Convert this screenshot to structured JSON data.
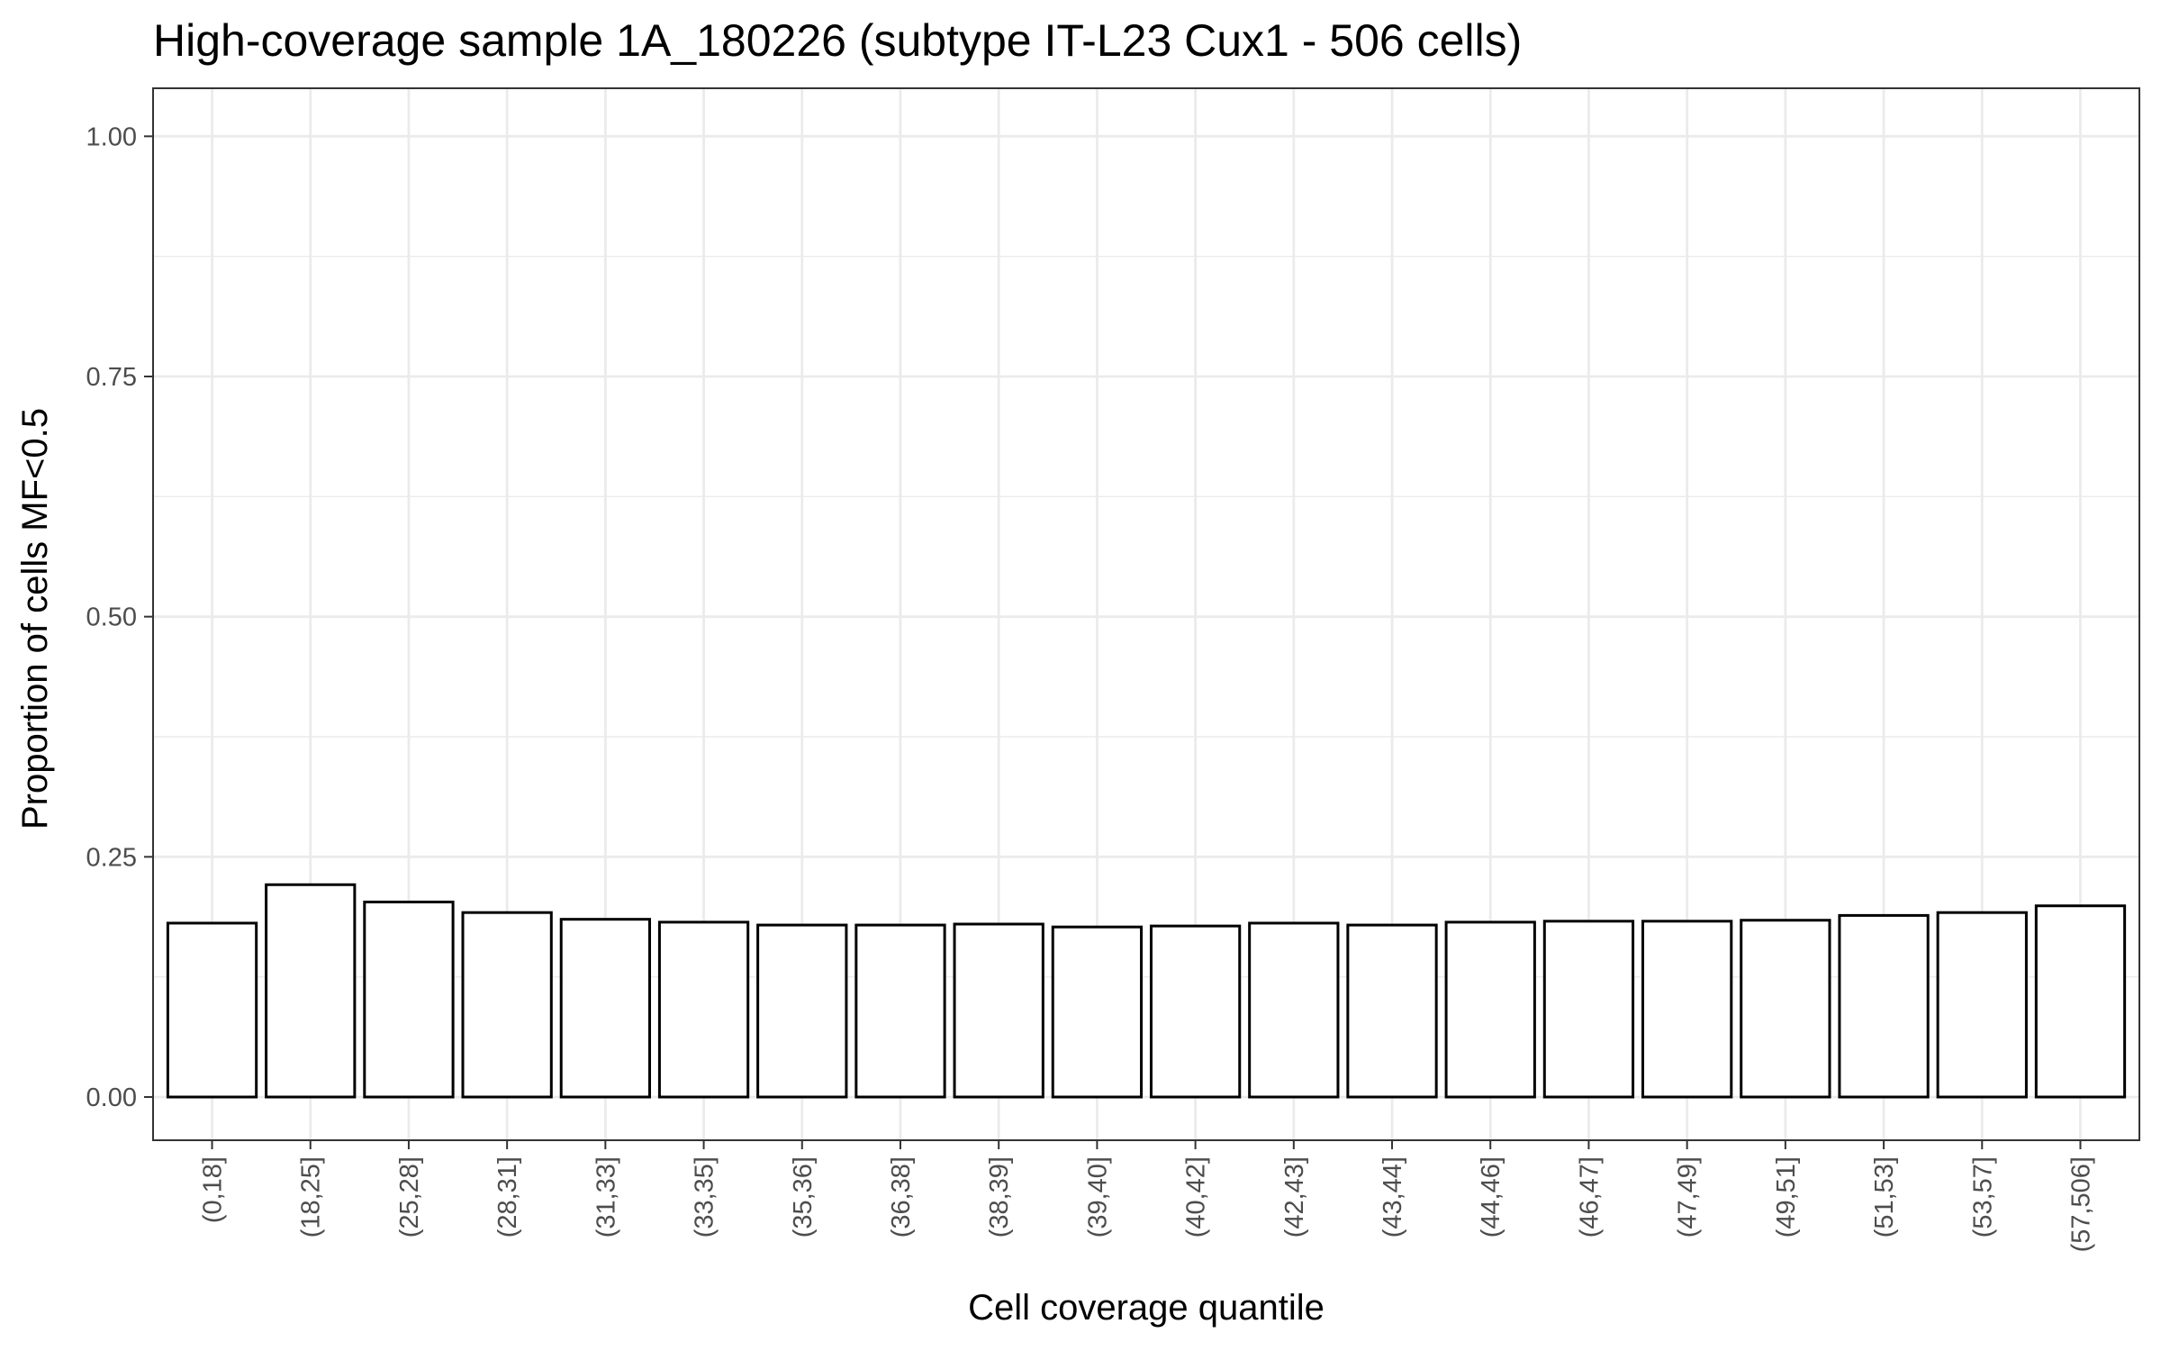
{
  "chart_data": {
    "type": "bar",
    "title": "High-coverage sample 1A_180226 (subtype IT-L23 Cux1 - 506 cells)",
    "xlabel": "Cell coverage quantile",
    "ylabel": "Proportion of cells MF<0.5",
    "ylim": [
      -0.045,
      1.05
    ],
    "yticks": [
      0.0,
      0.25,
      0.5,
      0.75,
      1.0
    ],
    "ytick_labels": [
      "0.00",
      "0.25",
      "0.50",
      "0.75",
      "1.00"
    ],
    "grid": true,
    "legend": "none",
    "categories": [
      "(0,18]",
      "(18,25]",
      "(25,28]",
      "(28,31]",
      "(31,33]",
      "(33,35]",
      "(35,36]",
      "(36,38]",
      "(38,39]",
      "(39,40]",
      "(40,42]",
      "(42,43]",
      "(43,44]",
      "(44,46]",
      "(46,47]",
      "(47,49]",
      "(49,51]",
      "(51,53]",
      "(53,57]",
      "(57,506]"
    ],
    "values": [
      0.181,
      0.221,
      0.203,
      0.192,
      0.185,
      0.182,
      0.179,
      0.179,
      0.18,
      0.177,
      0.178,
      0.181,
      0.179,
      0.182,
      0.183,
      0.183,
      0.184,
      0.189,
      0.192,
      0.199
    ],
    "bar_fill": "#ffffff",
    "bar_stroke": "#000000",
    "grid_color": "#ebebeb",
    "panel_border": "#333333"
  }
}
